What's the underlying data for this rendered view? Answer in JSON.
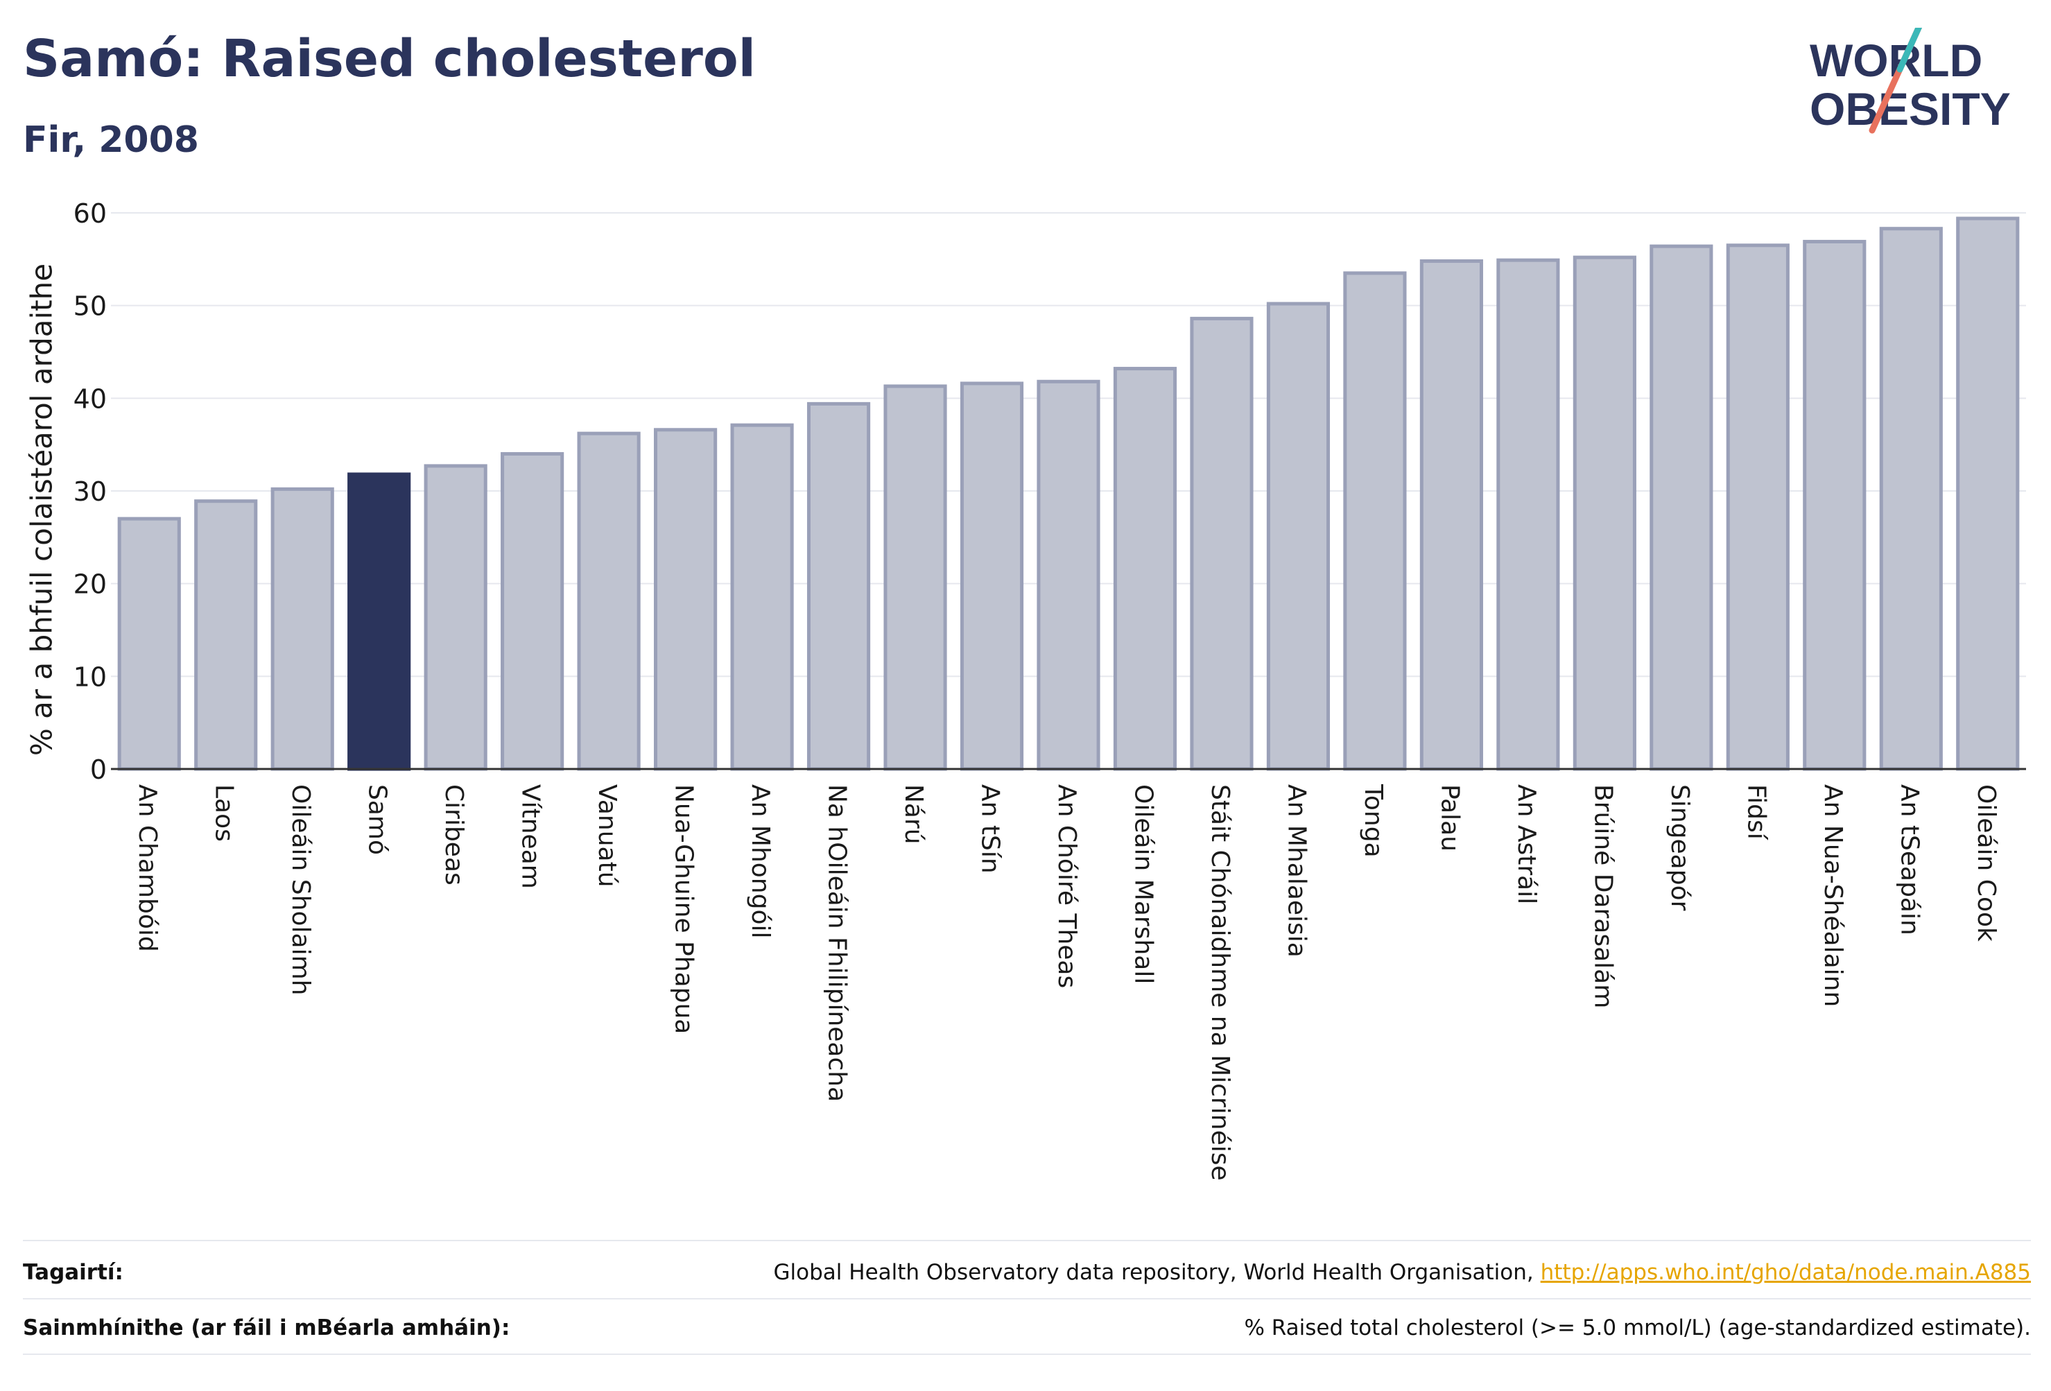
{
  "header": {
    "title": "Samó: Raised cholesterol",
    "subtitle": "Fir, 2008"
  },
  "logo": {
    "line1": "WORLD",
    "line2": "OBESITY"
  },
  "colors": {
    "bar": "#bfc3d0",
    "bar_edge": "#9aa0b8",
    "highlight": "#2b345c",
    "grid": "#e6e8ee",
    "axis": "#333333"
  },
  "chart_data": {
    "type": "bar",
    "ylabel": "% ar a bhfuil colaistéarol ardaithe",
    "ylim": [
      0,
      60
    ],
    "yticks": [
      0,
      10,
      20,
      30,
      40,
      50,
      60
    ],
    "grid": true,
    "highlight": "Samó",
    "categories": [
      "An Chambóid",
      "Laos",
      "Oileáin Sholaimh",
      "Samó",
      "Ciribeas",
      "Vítneam",
      "Vanuatú",
      "Nua-Ghuine Phapua",
      "An Mhongóil",
      "Na hOileáin Fhilipíneacha",
      "Nárú",
      "An tSín",
      "An Chóiré Theas",
      "Oileáin Marshall",
      "Stáit Chónaidhme na Micrinéise",
      "An Mhalaeisia",
      "Tonga",
      "Palau",
      "An Astráil",
      "Brúiné Darasalám",
      "Singeapór",
      "Fidsí",
      "An Nua-Shéalainn",
      "An tSeapáin",
      "Oileáin Cook"
    ],
    "values": [
      27.0,
      28.9,
      30.2,
      31.8,
      32.7,
      34.0,
      36.2,
      36.6,
      37.1,
      39.4,
      41.3,
      41.6,
      41.8,
      43.2,
      48.6,
      50.2,
      53.5,
      54.8,
      54.9,
      55.2,
      56.4,
      56.5,
      56.9,
      58.3,
      59.4
    ]
  },
  "footer": {
    "references_label": "Tagairtí:",
    "references_text": "Global Health Observatory data repository, World Health Organisation, ",
    "references_link": "http://apps.who.int/gho/data/node.main.A885",
    "definitions_label": "Sainmhínithe (ar fáil i mBéarla amháin):",
    "definitions_text": "% Raised total cholesterol (>= 5.0 mmol/L) (age-standardized estimate)."
  }
}
